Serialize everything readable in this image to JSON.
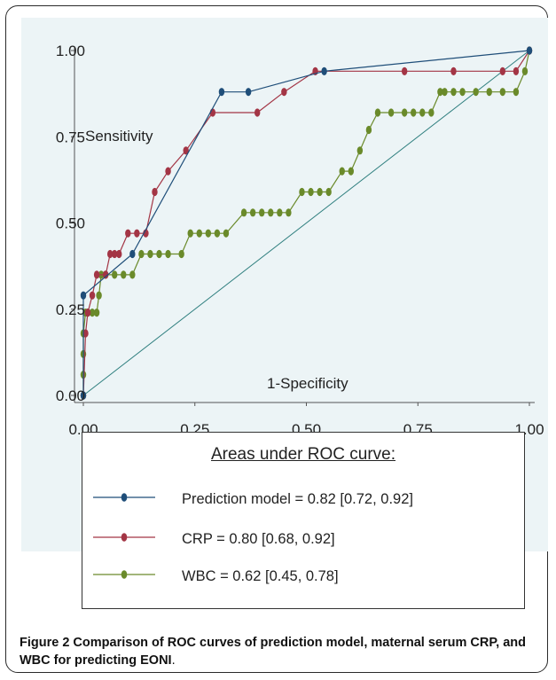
{
  "figure": {
    "caption_label": "Figure 2",
    "caption_text": " Comparison of ROC curves of prediction model, maternal serum CRP, and WBC for predicting EONI",
    "caption_end": "."
  },
  "legend": {
    "title": "Areas under ROC curve:",
    "entries": [
      {
        "label": "Prediction model = 0.82 [0.72, 0.92]",
        "color": "#1f4e79"
      },
      {
        "label": "CRP = 0.80 [0.68, 0.92]",
        "color": "#a33545"
      },
      {
        "label": "WBC = 0.62 [0.45, 0.78]",
        "color": "#6a8a2a"
      }
    ]
  },
  "chart_data": {
    "type": "line",
    "title": "",
    "xlabel": "1-Specificity",
    "ylabel": "Sensitivity",
    "xlim": [
      0,
      1
    ],
    "ylim": [
      0,
      1
    ],
    "xticks": [
      "0.00",
      "0.25",
      "0.50",
      "0.75",
      "1.00"
    ],
    "yticks": [
      "0.00",
      "0.25",
      "0.50",
      "0.75",
      "1.00"
    ],
    "grid": false,
    "reference_line": {
      "x": [
        0,
        1
      ],
      "y": [
        0,
        1
      ],
      "color": "#2f7f7f"
    },
    "series": [
      {
        "name": "Prediction model",
        "color": "#1f4e79",
        "x": [
          0.0,
          0.0,
          0.11,
          0.31,
          0.37,
          0.54,
          1.0
        ],
        "y": [
          0.0,
          0.29,
          0.41,
          0.88,
          0.88,
          0.94,
          1.0
        ]
      },
      {
        "name": "CRP",
        "color": "#a33545",
        "x": [
          0.0,
          0.005,
          0.01,
          0.02,
          0.03,
          0.05,
          0.06,
          0.07,
          0.08,
          0.1,
          0.12,
          0.14,
          0.16,
          0.19,
          0.23,
          0.29,
          0.39,
          0.45,
          0.52,
          0.72,
          0.83,
          0.94,
          0.97,
          1.0
        ],
        "y": [
          0.0,
          0.18,
          0.24,
          0.29,
          0.35,
          0.35,
          0.41,
          0.41,
          0.41,
          0.47,
          0.47,
          0.47,
          0.59,
          0.65,
          0.71,
          0.82,
          0.82,
          0.88,
          0.94,
          0.94,
          0.94,
          0.94,
          0.94,
          1.0
        ]
      },
      {
        "name": "WBC",
        "color": "#6a8a2a",
        "x": [
          0.0,
          0.0,
          0.0,
          0.0,
          0.005,
          0.01,
          0.02,
          0.03,
          0.035,
          0.04,
          0.05,
          0.07,
          0.09,
          0.11,
          0.13,
          0.15,
          0.17,
          0.19,
          0.22,
          0.24,
          0.26,
          0.28,
          0.3,
          0.32,
          0.36,
          0.38,
          0.4,
          0.42,
          0.44,
          0.46,
          0.49,
          0.51,
          0.53,
          0.55,
          0.58,
          0.6,
          0.62,
          0.64,
          0.66,
          0.69,
          0.72,
          0.74,
          0.76,
          0.78,
          0.8,
          0.81,
          0.83,
          0.85,
          0.88,
          0.91,
          0.94,
          0.97,
          0.99,
          1.0
        ],
        "y": [
          0.0,
          0.06,
          0.12,
          0.18,
          0.24,
          0.24,
          0.24,
          0.24,
          0.29,
          0.35,
          0.35,
          0.35,
          0.35,
          0.35,
          0.41,
          0.41,
          0.41,
          0.41,
          0.41,
          0.47,
          0.47,
          0.47,
          0.47,
          0.47,
          0.53,
          0.53,
          0.53,
          0.53,
          0.53,
          0.53,
          0.59,
          0.59,
          0.59,
          0.59,
          0.65,
          0.65,
          0.71,
          0.77,
          0.82,
          0.82,
          0.82,
          0.82,
          0.82,
          0.82,
          0.88,
          0.88,
          0.88,
          0.88,
          0.88,
          0.88,
          0.88,
          0.88,
          0.94,
          1.0
        ]
      }
    ]
  }
}
